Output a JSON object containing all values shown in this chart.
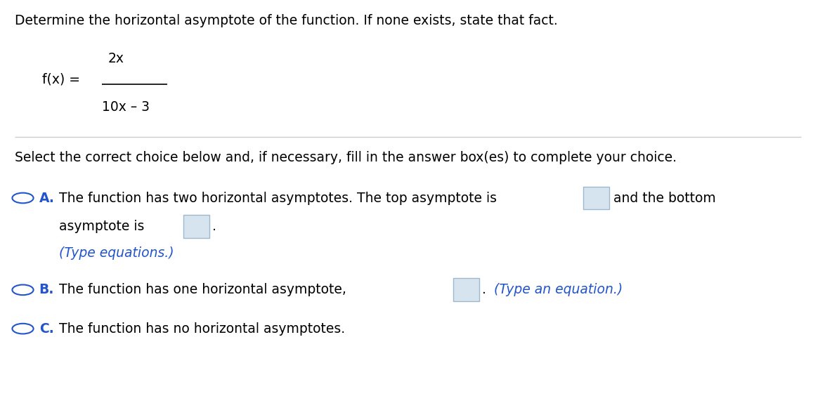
{
  "title_text": "Determine the horizontal asymptote of the function. If none exists, state that fact.",
  "numerator": "2x",
  "denominator": "10x – 3",
  "select_text": "Select the correct choice below and, if necessary, fill in the answer box(es) to complete your choice.",
  "option_A_text1": "The function has two horizontal asymptotes. The top asymptote is",
  "option_A_text2": "and the bottom",
  "option_A_text3": "asymptote is",
  "option_A_text4": ".",
  "option_A_hint": "(Type equations.)",
  "option_B_text1": "The function has one horizontal asymptote,",
  "option_B_text2": ".",
  "option_B_hint": "(Type an equation.)",
  "option_C_text": "The function has no horizontal asymptotes.",
  "bg_color": "#ffffff",
  "text_color": "#000000",
  "label_color": "#2255cc",
  "hint_color": "#2255cc",
  "circle_color": "#2255cc",
  "box_fill": "#d6e4f0",
  "box_edge": "#a0b8cc",
  "line_color": "#cccccc",
  "body_fontsize": 13.5
}
